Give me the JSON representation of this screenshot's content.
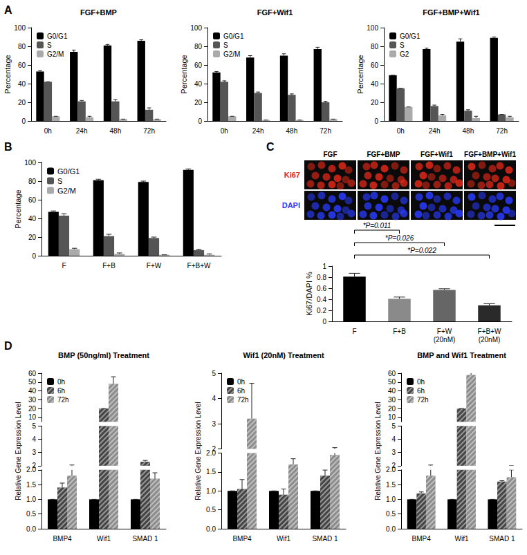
{
  "panel_labels": [
    "A",
    "B",
    "C",
    "D"
  ],
  "micrographs": {
    "columns": [
      "FGF",
      "FGF+BMP",
      "FGF+Wif1",
      "FGF+BMP+Wif1"
    ],
    "rows": [
      {
        "label": "Ki67",
        "color": "#e02818"
      },
      {
        "label": "DAPI",
        "color": "#2a3cff"
      }
    ]
  },
  "chart_data": [
    {
      "type": "bar",
      "panel": "A",
      "title": "FGF+BMP",
      "ylabel": "Percentage",
      "categories": [
        "0h",
        "24h",
        "48h",
        "72h"
      ],
      "series": [
        {
          "name": "G0/G1",
          "color": "#000000",
          "values": [
            53,
            74,
            81,
            86
          ],
          "errors": [
            1,
            2,
            1,
            1
          ]
        },
        {
          "name": "S",
          "color": "#555555",
          "values": [
            42,
            21,
            21,
            12
          ],
          "errors": [
            0,
            1,
            2,
            2
          ]
        },
        {
          "name": "G2/M",
          "color": "#aaaaaa",
          "values": [
            5,
            4,
            2,
            2
          ],
          "errors": [
            0,
            1,
            0,
            0
          ]
        }
      ],
      "ylim": [
        0,
        100
      ],
      "yticks": [
        0,
        20,
        40,
        60,
        80,
        100
      ],
      "legend": "upper left"
    },
    {
      "type": "bar",
      "panel": "A",
      "title": "FGF+Wif1",
      "ylabel": "Percentage",
      "categories": [
        "0h",
        "24h",
        "48h",
        "72h"
      ],
      "series": [
        {
          "name": "G0/G1",
          "color": "#000000",
          "values": [
            52,
            68,
            70,
            77
          ],
          "errors": [
            1,
            2,
            2,
            2
          ]
        },
        {
          "name": "S",
          "color": "#555555",
          "values": [
            42,
            30,
            28,
            20
          ],
          "errors": [
            1,
            1,
            1,
            1
          ]
        },
        {
          "name": "G2/M",
          "color": "#aaaaaa",
          "values": [
            5,
            1,
            1,
            2
          ],
          "errors": [
            0,
            0,
            0,
            0
          ]
        }
      ],
      "ylim": [
        0,
        100
      ],
      "yticks": [
        0,
        20,
        40,
        60,
        80,
        100
      ],
      "legend": "upper left"
    },
    {
      "type": "bar",
      "panel": "A",
      "title": "FGF+BMP+Wif1",
      "ylabel": "Percentage",
      "categories": [
        "0h",
        "24h",
        "48h",
        "72h"
      ],
      "series": [
        {
          "name": "G0/G1",
          "color": "#000000",
          "values": [
            49,
            77,
            85,
            89
          ],
          "errors": [
            0,
            1,
            3,
            1
          ]
        },
        {
          "name": "S",
          "color": "#555555",
          "values": [
            35,
            16,
            11,
            7
          ],
          "errors": [
            0,
            1,
            1,
            0
          ]
        },
        {
          "name": "G2",
          "color": "#aaaaaa",
          "values": [
            15,
            6,
            3,
            4
          ],
          "errors": [
            0,
            1,
            2,
            1
          ]
        }
      ],
      "ylim": [
        0,
        100
      ],
      "yticks": [
        0,
        20,
        40,
        60,
        80,
        100
      ],
      "legend": "upper left"
    },
    {
      "type": "bar",
      "panel": "B",
      "ylabel": "Percentage",
      "categories": [
        "F",
        "F+B",
        "F+W",
        "F+B+W"
      ],
      "series": [
        {
          "name": "G0/G1",
          "color": "#000000",
          "values": [
            47,
            81,
            79,
            92
          ],
          "errors": [
            1,
            1,
            1,
            1
          ]
        },
        {
          "name": "S",
          "color": "#555555",
          "values": [
            43,
            21,
            19,
            6
          ],
          "errors": [
            2,
            2,
            1,
            1
          ]
        },
        {
          "name": "G2/M",
          "color": "#aaaaaa",
          "values": [
            7,
            2,
            1,
            1
          ],
          "errors": [
            1,
            1,
            0,
            1
          ]
        }
      ],
      "ylim": [
        0,
        100
      ],
      "yticks": [
        0,
        20,
        40,
        60,
        80,
        100
      ],
      "legend": "upper left"
    },
    {
      "type": "bar",
      "panel": "C",
      "ylabel": "Ki67/DAPI %",
      "categories": [
        "F",
        "F+B",
        "F+W\n(20nM)",
        "F+B+W\n(20nM)"
      ],
      "values": [
        0.81,
        0.41,
        0.57,
        0.29
      ],
      "errors": [
        0.06,
        0.03,
        0.02,
        0.03
      ],
      "colors": [
        "#000000",
        "#8a8a8a",
        "#666666",
        "#2a2a2a"
      ],
      "ylim": [
        0,
        1
      ],
      "yticks": [
        0,
        0.2,
        0.4,
        0.6,
        0.8,
        1
      ],
      "annotations": [
        {
          "text": "*P=0.011",
          "from": "F",
          "to": "F+B"
        },
        {
          "text": "*P=0.026",
          "from": "F",
          "to": "F+W\n(20nM)"
        },
        {
          "text": "*P=0.022",
          "from": "F",
          "to": "F+B+W\n(20nM)"
        }
      ]
    },
    {
      "type": "bar",
      "panel": "D",
      "title": "BMP (50ng/ml) Treatment",
      "ylabel": "Relative Gene Expression Level",
      "categories": [
        "BMP4",
        "Wif1",
        "SMAD 1"
      ],
      "series": [
        {
          "name": "0h",
          "color": "#000000",
          "values": [
            1,
            1,
            1
          ],
          "errors": [
            0,
            0,
            0
          ]
        },
        {
          "name": "6h",
          "color": "#444444",
          "values": [
            1.4,
            20,
            2.3
          ],
          "errors": [
            0.15,
            0,
            0.1
          ]
        },
        {
          "name": "72h",
          "color": "#8c8c8c",
          "values": [
            1.8,
            48,
            1.7
          ],
          "errors": [
            0.25,
            8,
            0.2
          ]
        }
      ],
      "segments": [
        {
          "ylim": [
            0,
            2
          ],
          "yticks": [
            {
              "value": 0,
              "label": "0.0"
            },
            0.5,
            {
              "value": 1,
              "label": "1.0"
            },
            1.5,
            {
              "value": 2,
              "label": "2.0"
            }
          ]
        },
        {
          "ylim": [
            2,
            5
          ],
          "yticks": [
            2,
            3,
            4,
            5
          ]
        },
        {
          "ylim": [
            5,
            60
          ],
          "yticks": [
            5,
            10,
            20,
            30,
            40,
            50,
            60
          ]
        }
      ],
      "legend": "upper left"
    },
    {
      "type": "bar",
      "panel": "D",
      "title": "Wif1 (20nM) Treatment",
      "ylabel": "Relative Gene Expression Level",
      "categories": [
        "BMP4",
        "Wif1",
        "SMAD 1"
      ],
      "series": [
        {
          "name": "0h",
          "color": "#000000",
          "values": [
            1,
            1,
            1
          ],
          "errors": [
            0,
            0,
            0
          ]
        },
        {
          "name": "6h",
          "color": "#444444",
          "values": [
            1.05,
            0.9,
            1.4
          ],
          "errors": [
            0.25,
            0.15,
            0.15
          ]
        },
        {
          "name": "72h",
          "color": "#8c8c8c",
          "values": [
            3.2,
            1.7,
            1.95
          ],
          "errors": [
            1.4,
            0.15,
            0.1
          ]
        }
      ],
      "segments": [
        {
          "ylim": [
            0,
            2
          ],
          "yticks": [
            {
              "value": 0,
              "label": "0.0"
            },
            0.5,
            {
              "value": 1,
              "label": "1.0"
            },
            1.5,
            {
              "value": 2,
              "label": "2.0"
            }
          ]
        },
        {
          "ylim": [
            2,
            5
          ],
          "yticks": [
            2,
            3,
            4,
            5
          ]
        }
      ],
      "legend": "upper left"
    },
    {
      "type": "bar",
      "panel": "D",
      "title": "BMP and Wif1 Treatment",
      "ylabel": "Relative Gene Expression Level",
      "categories": [
        "BMP4",
        "Wif1",
        "SMAD 1"
      ],
      "series": [
        {
          "name": "0h",
          "color": "#000000",
          "values": [
            1,
            1,
            1
          ],
          "errors": [
            0,
            0,
            0
          ]
        },
        {
          "name": "6h",
          "color": "#444444",
          "values": [
            1.2,
            20,
            1.6
          ],
          "errors": [
            0.05,
            0,
            0.03
          ]
        },
        {
          "name": "72h",
          "color": "#8c8c8c",
          "values": [
            1.8,
            58,
            1.75
          ],
          "errors": [
            0.25,
            8,
            0.25
          ]
        }
      ],
      "segments": [
        {
          "ylim": [
            0,
            2
          ],
          "yticks": [
            {
              "value": 0,
              "label": "0.0"
            },
            0.5,
            {
              "value": 1,
              "label": "1.0"
            },
            1.5,
            {
              "value": 2,
              "label": "2.0"
            }
          ]
        },
        {
          "ylim": [
            2,
            5
          ],
          "yticks": [
            2,
            3,
            4,
            5
          ]
        },
        {
          "ylim": [
            5,
            60
          ],
          "yticks": [
            5,
            10,
            20,
            30,
            40,
            50,
            60
          ]
        }
      ],
      "legend": "upper left"
    }
  ]
}
